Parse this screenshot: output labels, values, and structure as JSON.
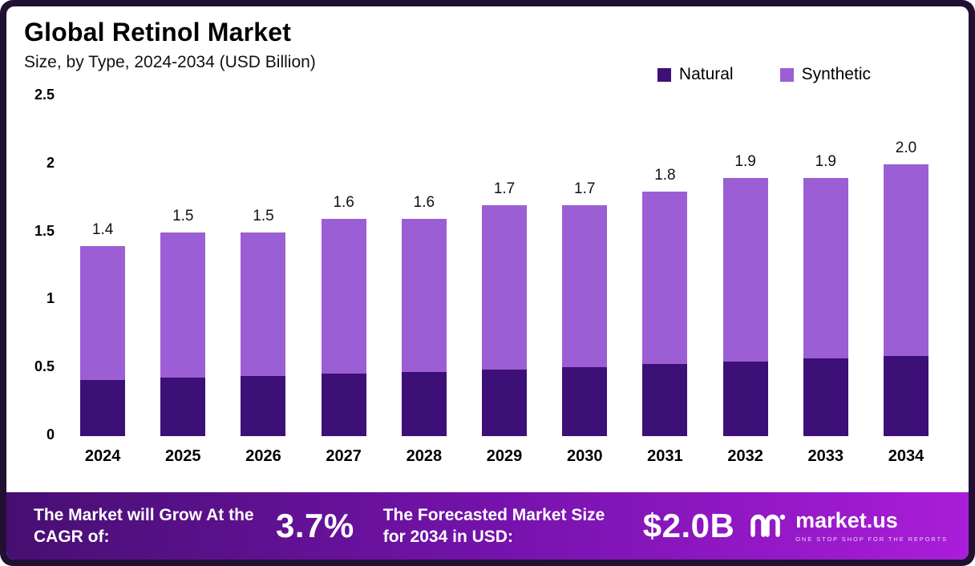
{
  "header": {
    "title": "Global Retinol Market",
    "subtitle": "Size, by Type, 2024-2034 (USD Billion)"
  },
  "chart_data": {
    "type": "bar",
    "stacked": true,
    "title": "Global Retinol Market",
    "subtitle": "Size, by Type, 2024-2034 (USD Billion)",
    "categories": [
      "2024",
      "2025",
      "2026",
      "2027",
      "2028",
      "2029",
      "2030",
      "2031",
      "2032",
      "2033",
      "2034"
    ],
    "series": [
      {
        "name": "Natural",
        "color": "#3d1078",
        "values": [
          0.41,
          0.43,
          0.44,
          0.46,
          0.47,
          0.49,
          0.51,
          0.53,
          0.55,
          0.57,
          0.59
        ]
      },
      {
        "name": "Synthetic",
        "color": "#9c5ed4",
        "values": [
          0.99,
          1.07,
          1.06,
          1.14,
          1.13,
          1.21,
          1.19,
          1.27,
          1.35,
          1.33,
          1.41
        ]
      }
    ],
    "totals": [
      1.4,
      1.5,
      1.5,
      1.6,
      1.6,
      1.7,
      1.7,
      1.8,
      1.9,
      1.9,
      2.0
    ],
    "total_labels": [
      "1.4",
      "1.5",
      "1.5",
      "1.6",
      "1.6",
      "1.7",
      "1.7",
      "1.8",
      "1.9",
      "1.9",
      "2.0"
    ],
    "xlabel": "",
    "ylabel": "",
    "ylim": [
      0,
      2.5
    ],
    "yticks": [
      "2.5",
      "2",
      "1.5",
      "1",
      "0.5",
      "0"
    ],
    "grid": false,
    "legend_position": "top-right"
  },
  "footer": {
    "cagr_label": "The Market will Grow At the CAGR of:",
    "cagr_value": "3.7%",
    "forecast_label": "The Forecasted Market Size for 2034 in USD:",
    "forecast_value": "$2.0B",
    "logo_text": "market.us",
    "logo_tagline": "ONE STOP SHOP FOR THE REPORTS"
  },
  "colors": {
    "frame": "#211031",
    "natural": "#3d1078",
    "synthetic": "#9c5ed4",
    "banner_gradient_start": "#470f72",
    "banner_gradient_end": "#aa1dd9"
  }
}
